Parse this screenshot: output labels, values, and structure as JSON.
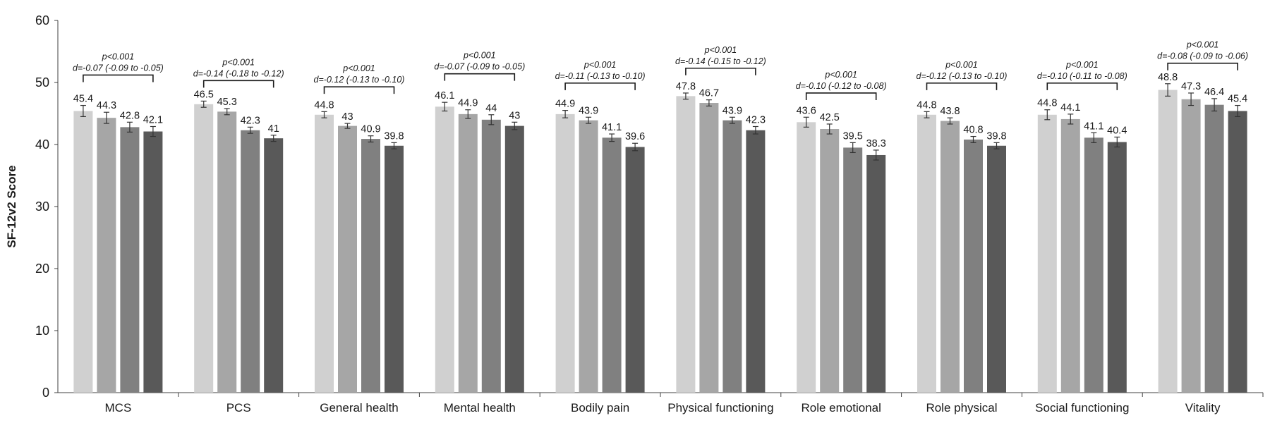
{
  "chart_data": {
    "type": "bar",
    "ylabel": "SF-12v2 Score",
    "ylim": [
      0,
      60
    ],
    "yticks": [
      0,
      10,
      20,
      30,
      40,
      50,
      60
    ],
    "grid": false,
    "legend": "none",
    "categories": [
      "MCS",
      "PCS",
      "General health",
      "Mental health",
      "Bodily pain",
      "Physical functioning",
      "Role emotional",
      "Role physical",
      "Social functioning",
      "Vitality"
    ],
    "series": [
      {
        "color": "#d0d0d0",
        "values": [
          45.4,
          46.5,
          44.8,
          46.1,
          44.9,
          47.8,
          43.6,
          44.8,
          44.8,
          48.8
        ],
        "value_labels": [
          "45.4",
          "46.5",
          "44.8",
          "46.1",
          "44.9",
          "47.8",
          "43.6",
          "44.8",
          "44.8",
          "48.8"
        ],
        "errors": [
          0.9,
          0.5,
          0.5,
          0.7,
          0.6,
          0.5,
          0.8,
          0.5,
          0.8,
          1.0
        ]
      },
      {
        "color": "#a6a6a6",
        "values": [
          44.3,
          45.3,
          43.0,
          44.9,
          43.9,
          46.7,
          42.5,
          43.8,
          44.1,
          47.3
        ],
        "value_labels": [
          "44.3",
          "45.3",
          "43",
          "44.9",
          "43.9",
          "46.7",
          "42.5",
          "43.8",
          "44.1",
          "47.3"
        ],
        "errors": [
          0.9,
          0.5,
          0.4,
          0.7,
          0.5,
          0.5,
          0.8,
          0.5,
          0.8,
          1.0
        ]
      },
      {
        "color": "#808080",
        "values": [
          42.8,
          42.3,
          40.9,
          44.0,
          41.1,
          43.9,
          39.5,
          40.8,
          41.1,
          46.4
        ],
        "value_labels": [
          "42.8",
          "42.3",
          "40.9",
          "44",
          "41.1",
          "43.9",
          "39.5",
          "40.8",
          "41.1",
          "46.4"
        ],
        "errors": [
          0.8,
          0.5,
          0.5,
          0.8,
          0.6,
          0.5,
          0.8,
          0.5,
          0.8,
          1.0
        ]
      },
      {
        "color": "#595959",
        "values": [
          42.1,
          41.0,
          39.8,
          43.0,
          39.6,
          42.3,
          38.3,
          39.8,
          40.4,
          45.4
        ],
        "value_labels": [
          "42.1",
          "41",
          "39.8",
          "43",
          "39.6",
          "42.3",
          "38.3",
          "39.8",
          "40.4",
          "45.4"
        ],
        "errors": [
          0.8,
          0.5,
          0.5,
          0.6,
          0.6,
          0.6,
          0.8,
          0.5,
          0.8,
          0.9
        ]
      }
    ],
    "annotations": [
      {
        "p": "p<0.001",
        "d": "d=-0.07 (-0.09 to -0.05)",
        "bracket_y": 51.2
      },
      {
        "p": "p<0.001",
        "d": "d=-0.14 (-0.18 to -0.12)",
        "bracket_y": 50.3
      },
      {
        "p": "p<0.001",
        "d": "d=-0.12 (-0.13 to -0.10)",
        "bracket_y": 49.3
      },
      {
        "p": "p<0.001",
        "d": "d=-0.07 (-0.09 to -0.05)",
        "bracket_y": 51.4
      },
      {
        "p": "p<0.001",
        "d": "d=-0.11 (-0.13 to -0.10)",
        "bracket_y": 49.9
      },
      {
        "p": "p<0.001",
        "d": "d=-0.14 (-0.15 to -0.12)",
        "bracket_y": 52.3
      },
      {
        "p": "p<0.001",
        "d": "d=-0.10 (-0.12 to -0.08)",
        "bracket_y": 48.3
      },
      {
        "p": "p<0.001",
        "d": "d=-0.12 (-0.13 to -0.10)",
        "bracket_y": 49.9
      },
      {
        "p": "p<0.001",
        "d": "d=-0.10 (-0.11 to -0.08)",
        "bracket_y": 49.9
      },
      {
        "p": "p<0.001",
        "d": "d=-0.08 (-0.09 to -0.06)",
        "bracket_y": 53.1
      }
    ]
  }
}
